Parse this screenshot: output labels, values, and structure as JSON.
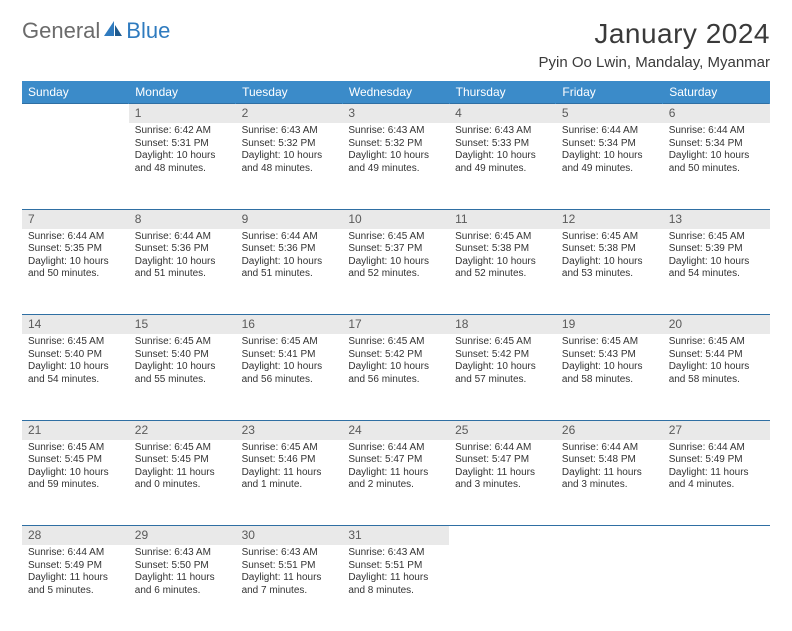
{
  "brand": {
    "part1": "General",
    "part2": "Blue"
  },
  "title": "January 2024",
  "location": "Pyin Oo Lwin, Mandalay, Myanmar",
  "colors": {
    "header_bg": "#3b8bc9",
    "header_text": "#ffffff",
    "daynum_bg": "#e9e9e9",
    "daynum_text": "#5a5a5a",
    "divider": "#2f6fa3",
    "body_text": "#333333",
    "brand_gray": "#6b6b6b",
    "brand_blue": "#2f7bbf"
  },
  "weekdays": [
    "Sunday",
    "Monday",
    "Tuesday",
    "Wednesday",
    "Thursday",
    "Friday",
    "Saturday"
  ],
  "weeks": [
    [
      null,
      {
        "n": "1",
        "sr": "Sunrise: 6:42 AM",
        "ss": "Sunset: 5:31 PM",
        "d1": "Daylight: 10 hours",
        "d2": "and 48 minutes."
      },
      {
        "n": "2",
        "sr": "Sunrise: 6:43 AM",
        "ss": "Sunset: 5:32 PM",
        "d1": "Daylight: 10 hours",
        "d2": "and 48 minutes."
      },
      {
        "n": "3",
        "sr": "Sunrise: 6:43 AM",
        "ss": "Sunset: 5:32 PM",
        "d1": "Daylight: 10 hours",
        "d2": "and 49 minutes."
      },
      {
        "n": "4",
        "sr": "Sunrise: 6:43 AM",
        "ss": "Sunset: 5:33 PM",
        "d1": "Daylight: 10 hours",
        "d2": "and 49 minutes."
      },
      {
        "n": "5",
        "sr": "Sunrise: 6:44 AM",
        "ss": "Sunset: 5:34 PM",
        "d1": "Daylight: 10 hours",
        "d2": "and 49 minutes."
      },
      {
        "n": "6",
        "sr": "Sunrise: 6:44 AM",
        "ss": "Sunset: 5:34 PM",
        "d1": "Daylight: 10 hours",
        "d2": "and 50 minutes."
      }
    ],
    [
      {
        "n": "7",
        "sr": "Sunrise: 6:44 AM",
        "ss": "Sunset: 5:35 PM",
        "d1": "Daylight: 10 hours",
        "d2": "and 50 minutes."
      },
      {
        "n": "8",
        "sr": "Sunrise: 6:44 AM",
        "ss": "Sunset: 5:36 PM",
        "d1": "Daylight: 10 hours",
        "d2": "and 51 minutes."
      },
      {
        "n": "9",
        "sr": "Sunrise: 6:44 AM",
        "ss": "Sunset: 5:36 PM",
        "d1": "Daylight: 10 hours",
        "d2": "and 51 minutes."
      },
      {
        "n": "10",
        "sr": "Sunrise: 6:45 AM",
        "ss": "Sunset: 5:37 PM",
        "d1": "Daylight: 10 hours",
        "d2": "and 52 minutes."
      },
      {
        "n": "11",
        "sr": "Sunrise: 6:45 AM",
        "ss": "Sunset: 5:38 PM",
        "d1": "Daylight: 10 hours",
        "d2": "and 52 minutes."
      },
      {
        "n": "12",
        "sr": "Sunrise: 6:45 AM",
        "ss": "Sunset: 5:38 PM",
        "d1": "Daylight: 10 hours",
        "d2": "and 53 minutes."
      },
      {
        "n": "13",
        "sr": "Sunrise: 6:45 AM",
        "ss": "Sunset: 5:39 PM",
        "d1": "Daylight: 10 hours",
        "d2": "and 54 minutes."
      }
    ],
    [
      {
        "n": "14",
        "sr": "Sunrise: 6:45 AM",
        "ss": "Sunset: 5:40 PM",
        "d1": "Daylight: 10 hours",
        "d2": "and 54 minutes."
      },
      {
        "n": "15",
        "sr": "Sunrise: 6:45 AM",
        "ss": "Sunset: 5:40 PM",
        "d1": "Daylight: 10 hours",
        "d2": "and 55 minutes."
      },
      {
        "n": "16",
        "sr": "Sunrise: 6:45 AM",
        "ss": "Sunset: 5:41 PM",
        "d1": "Daylight: 10 hours",
        "d2": "and 56 minutes."
      },
      {
        "n": "17",
        "sr": "Sunrise: 6:45 AM",
        "ss": "Sunset: 5:42 PM",
        "d1": "Daylight: 10 hours",
        "d2": "and 56 minutes."
      },
      {
        "n": "18",
        "sr": "Sunrise: 6:45 AM",
        "ss": "Sunset: 5:42 PM",
        "d1": "Daylight: 10 hours",
        "d2": "and 57 minutes."
      },
      {
        "n": "19",
        "sr": "Sunrise: 6:45 AM",
        "ss": "Sunset: 5:43 PM",
        "d1": "Daylight: 10 hours",
        "d2": "and 58 minutes."
      },
      {
        "n": "20",
        "sr": "Sunrise: 6:45 AM",
        "ss": "Sunset: 5:44 PM",
        "d1": "Daylight: 10 hours",
        "d2": "and 58 minutes."
      }
    ],
    [
      {
        "n": "21",
        "sr": "Sunrise: 6:45 AM",
        "ss": "Sunset: 5:45 PM",
        "d1": "Daylight: 10 hours",
        "d2": "and 59 minutes."
      },
      {
        "n": "22",
        "sr": "Sunrise: 6:45 AM",
        "ss": "Sunset: 5:45 PM",
        "d1": "Daylight: 11 hours",
        "d2": "and 0 minutes."
      },
      {
        "n": "23",
        "sr": "Sunrise: 6:45 AM",
        "ss": "Sunset: 5:46 PM",
        "d1": "Daylight: 11 hours",
        "d2": "and 1 minute."
      },
      {
        "n": "24",
        "sr": "Sunrise: 6:44 AM",
        "ss": "Sunset: 5:47 PM",
        "d1": "Daylight: 11 hours",
        "d2": "and 2 minutes."
      },
      {
        "n": "25",
        "sr": "Sunrise: 6:44 AM",
        "ss": "Sunset: 5:47 PM",
        "d1": "Daylight: 11 hours",
        "d2": "and 3 minutes."
      },
      {
        "n": "26",
        "sr": "Sunrise: 6:44 AM",
        "ss": "Sunset: 5:48 PM",
        "d1": "Daylight: 11 hours",
        "d2": "and 3 minutes."
      },
      {
        "n": "27",
        "sr": "Sunrise: 6:44 AM",
        "ss": "Sunset: 5:49 PM",
        "d1": "Daylight: 11 hours",
        "d2": "and 4 minutes."
      }
    ],
    [
      {
        "n": "28",
        "sr": "Sunrise: 6:44 AM",
        "ss": "Sunset: 5:49 PM",
        "d1": "Daylight: 11 hours",
        "d2": "and 5 minutes."
      },
      {
        "n": "29",
        "sr": "Sunrise: 6:43 AM",
        "ss": "Sunset: 5:50 PM",
        "d1": "Daylight: 11 hours",
        "d2": "and 6 minutes."
      },
      {
        "n": "30",
        "sr": "Sunrise: 6:43 AM",
        "ss": "Sunset: 5:51 PM",
        "d1": "Daylight: 11 hours",
        "d2": "and 7 minutes."
      },
      {
        "n": "31",
        "sr": "Sunrise: 6:43 AM",
        "ss": "Sunset: 5:51 PM",
        "d1": "Daylight: 11 hours",
        "d2": "and 8 minutes."
      },
      null,
      null,
      null
    ]
  ]
}
